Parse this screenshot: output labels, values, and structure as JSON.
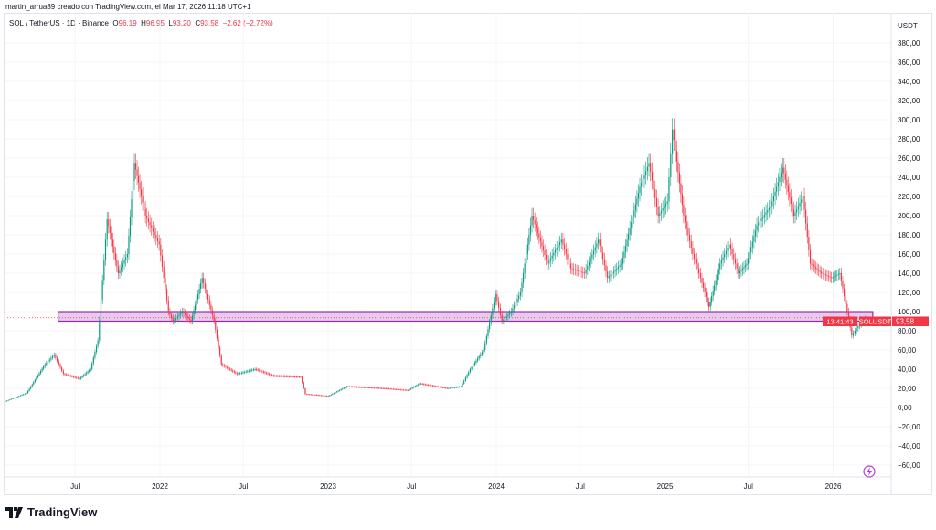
{
  "header": {
    "credit": "martin_arrua89 creado con TradingView.com, el Mar 17, 2026 11:18 UTC+1"
  },
  "legend": {
    "symbol": "SOL / TetherUS · 1D · Binance",
    "o_label": "O",
    "open": "96,19",
    "h_label": "H",
    "high": "96,95",
    "l_label": "L",
    "low": "93,20",
    "c_label": "C",
    "close": "93,58",
    "change": "−2,62 (−2,72%)"
  },
  "price_label": {
    "symbol": "SOLUSDT",
    "price": "93,58",
    "countdown": "13:41:43",
    "color": "#f23645"
  },
  "footer": {
    "brand": "TradingView"
  },
  "colors": {
    "up": "#089981",
    "down": "#f23645",
    "zone_fill": "#e1bee7",
    "zone_border": "#9c27b0"
  },
  "chart_data": {
    "type": "candlestick",
    "currency": "USDT",
    "ylim": [
      -70,
      395
    ],
    "y_ticks": [
      "380,00",
      "360,00",
      "340,00",
      "320,00",
      "300,00",
      "280,00",
      "260,00",
      "240,00",
      "220,00",
      "200,00",
      "180,00",
      "160,00",
      "140,00",
      "120,00",
      "100,00",
      "80,00",
      "60,00",
      "40,00",
      "20,00",
      "0,00",
      "−20,00",
      "−40,00",
      "−60,00"
    ],
    "x_ticks": [
      {
        "label": "Jul",
        "date": "2021-07-01"
      },
      {
        "label": "2022",
        "date": "2022-01-01"
      },
      {
        "label": "Jul",
        "date": "2022-07-01"
      },
      {
        "label": "2023",
        "date": "2023-01-01"
      },
      {
        "label": "Jul",
        "date": "2023-07-01"
      },
      {
        "label": "2024",
        "date": "2024-01-01"
      },
      {
        "label": "Jul",
        "date": "2024-07-01"
      },
      {
        "label": "2025",
        "date": "2025-01-01"
      },
      {
        "label": "Jul",
        "date": "2025-07-01"
      },
      {
        "label": "2026",
        "date": "2026-01-01"
      }
    ],
    "zone": {
      "low": 90,
      "high": 100,
      "start": "2021-05-25",
      "end": "2026-03-28"
    },
    "last_price": 93.58,
    "points": [
      [
        "2021-01-29",
        6
      ],
      [
        "2021-03-19",
        15
      ],
      [
        "2021-04-28",
        45
      ],
      [
        "2021-05-18",
        55
      ],
      [
        "2021-06-07",
        35
      ],
      [
        "2021-07-12",
        30
      ],
      [
        "2021-08-05",
        40
      ],
      [
        "2021-08-21",
        70
      ],
      [
        "2021-09-10",
        196
      ],
      [
        "2021-10-04",
        140
      ],
      [
        "2021-10-24",
        160
      ],
      [
        "2021-11-08",
        255
      ],
      [
        "2021-12-02",
        200
      ],
      [
        "2022-01-01",
        170
      ],
      [
        "2022-01-21",
        100
      ],
      [
        "2022-01-31",
        90
      ],
      [
        "2022-02-20",
        100
      ],
      [
        "2022-03-11",
        90
      ],
      [
        "2022-04-04",
        135
      ],
      [
        "2022-04-30",
        90
      ],
      [
        "2022-05-16",
        45
      ],
      [
        "2022-06-19",
        35
      ],
      [
        "2022-07-28",
        40
      ],
      [
        "2022-09-06",
        33
      ],
      [
        "2022-11-04",
        32
      ],
      [
        "2022-11-14",
        14
      ],
      [
        "2023-01-03",
        12
      ],
      [
        "2023-02-12",
        22
      ],
      [
        "2023-05-02",
        20
      ],
      [
        "2023-06-25",
        18
      ],
      [
        "2023-07-20",
        25
      ],
      [
        "2023-09-18",
        20
      ],
      [
        "2023-10-18",
        22
      ],
      [
        "2023-11-07",
        40
      ],
      [
        "2023-12-06",
        60
      ],
      [
        "2024-01-01",
        118
      ],
      [
        "2024-01-15",
        90
      ],
      [
        "2024-02-04",
        100
      ],
      [
        "2024-02-24",
        120
      ],
      [
        "2024-03-20",
        200
      ],
      [
        "2024-04-23",
        150
      ],
      [
        "2024-05-23",
        175
      ],
      [
        "2024-06-12",
        145
      ],
      [
        "2024-07-12",
        140
      ],
      [
        "2024-08-11",
        175
      ],
      [
        "2024-08-31",
        135
      ],
      [
        "2024-09-30",
        150
      ],
      [
        "2024-11-09",
        230
      ],
      [
        "2024-11-29",
        255
      ],
      [
        "2024-12-19",
        200
      ],
      [
        "2025-01-08",
        215
      ],
      [
        "2025-01-19",
        290
      ],
      [
        "2025-02-12",
        200
      ],
      [
        "2025-03-04",
        160
      ],
      [
        "2025-03-24",
        130
      ],
      [
        "2025-04-08",
        105
      ],
      [
        "2025-05-02",
        150
      ],
      [
        "2025-05-22",
        170
      ],
      [
        "2025-06-11",
        140
      ],
      [
        "2025-06-29",
        150
      ],
      [
        "2025-07-21",
        190
      ],
      [
        "2025-08-20",
        210
      ],
      [
        "2025-09-15",
        250
      ],
      [
        "2025-10-09",
        200
      ],
      [
        "2025-10-29",
        220
      ],
      [
        "2025-11-14",
        150
      ],
      [
        "2025-12-08",
        140
      ],
      [
        "2025-12-30",
        135
      ],
      [
        "2026-01-17",
        140
      ],
      [
        "2026-02-02",
        100
      ],
      [
        "2026-02-12",
        75
      ],
      [
        "2026-02-26",
        85
      ],
      [
        "2026-03-17",
        93.58
      ]
    ]
  }
}
